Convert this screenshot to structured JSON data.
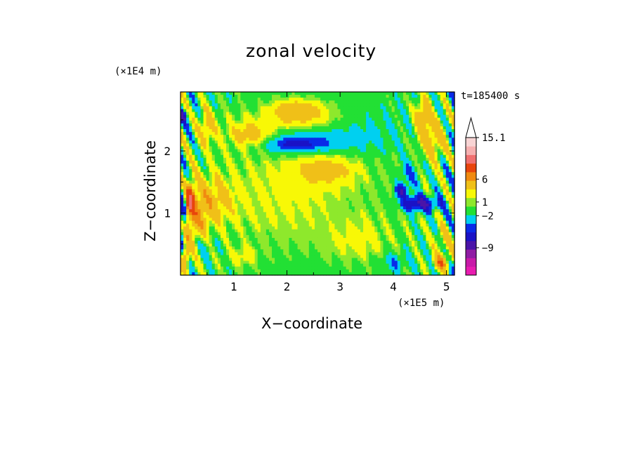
{
  "chart_data": {
    "type": "heatmap",
    "title": "zonal velocity",
    "xlabel": "X−coordinate",
    "ylabel": "Z−coordinate",
    "x_unit": "(×1E5 m)",
    "y_unit": "(×1E4 m)",
    "time_label": "t=185400 s",
    "xlim": [
      0,
      5.15
    ],
    "ylim": [
      0,
      2.95
    ],
    "x_ticks": [
      1,
      2,
      3,
      4,
      5
    ],
    "y_ticks": [
      1,
      2
    ],
    "colorbar": {
      "ticks": [
        15.1,
        6,
        1,
        -2,
        -9
      ],
      "tick_labels": [
        "15.1",
        "6",
        "1",
        "−2",
        "−9"
      ],
      "range": [
        -15,
        15.1
      ],
      "levels": [
        {
          "value": -15,
          "color": "#e81cb0"
        },
        {
          "value": -12,
          "color": "#c81aa8"
        },
        {
          "value": -9,
          "color": "#901ca4"
        },
        {
          "value": -6,
          "color": "#4a14a8"
        },
        {
          "value": -4,
          "color": "#1a12c6"
        },
        {
          "value": -2.5,
          "color": "#0a2ae8"
        },
        {
          "value": -1.5,
          "color": "#00d0f0"
        },
        {
          "value": -0.5,
          "color": "#22e034"
        },
        {
          "value": 0.5,
          "color": "#8ee82c"
        },
        {
          "value": 1,
          "color": "#f8f806"
        },
        {
          "value": 2,
          "color": "#f0c018"
        },
        {
          "value": 4,
          "color": "#f08a10"
        },
        {
          "value": 6,
          "color": "#e8440c"
        },
        {
          "value": 9,
          "color": "#f07070"
        },
        {
          "value": 12,
          "color": "#f6b0b0"
        },
        {
          "value": 15.1,
          "color": "#f8d4d4"
        }
      ]
    },
    "background_value": 0,
    "features": [
      {
        "x": 2.2,
        "z": 0.85,
        "sx": 1.3,
        "sz": 0.65,
        "v": 0.0
      },
      {
        "x": 2.0,
        "z": 1.3,
        "sx": 1.8,
        "sz": 0.9,
        "v": 1.2
      },
      {
        "x": 2.2,
        "z": 2.45,
        "sx": 1.2,
        "sz": 0.22,
        "v": 1.3
      },
      {
        "x": 2.2,
        "z": 2.65,
        "sx": 0.5,
        "sz": 0.18,
        "v": 3.0
      },
      {
        "x": 1.3,
        "z": 2.25,
        "sx": 0.4,
        "sz": 0.18,
        "v": 2.6
      },
      {
        "x": 2.15,
        "z": 2.1,
        "sx": 0.55,
        "sz": 0.12,
        "v": -2.3
      },
      {
        "x": 2.35,
        "z": 2.2,
        "sx": 0.9,
        "sz": 0.25,
        "v": -1.6
      },
      {
        "x": 3.4,
        "z": 2.3,
        "sx": 0.7,
        "sz": 0.35,
        "v": -1.0
      },
      {
        "x": 2.7,
        "z": 1.7,
        "sx": 0.55,
        "sz": 0.22,
        "v": 2.4
      },
      {
        "x": 0.65,
        "z": 1.2,
        "sx": 0.35,
        "sz": 0.35,
        "v": 2.2
      },
      {
        "x": 0.25,
        "z": 0.9,
        "sx": 0.25,
        "sz": 0.55,
        "v": 3.2
      },
      {
        "x": 0.18,
        "z": 1.2,
        "sx": 0.08,
        "sz": 0.22,
        "v": 6.5
      },
      {
        "x": 0.05,
        "z": 1.0,
        "sx": 0.06,
        "sz": 0.4,
        "v": -4.0
      },
      {
        "x": 0.5,
        "z": 2.4,
        "sx": 0.15,
        "sz": 0.3,
        "v": 2.5
      },
      {
        "x": 0.05,
        "z": 2.55,
        "sx": 0.08,
        "sz": 0.1,
        "v": -3.0
      },
      {
        "x": 0.4,
        "z": 0.45,
        "sx": 0.25,
        "sz": 0.2,
        "v": -1.2
      },
      {
        "x": 0.1,
        "z": 0.3,
        "sx": 0.06,
        "sz": 0.2,
        "v": 4.0
      },
      {
        "x": 1.2,
        "z": 0.3,
        "sx": 0.25,
        "sz": 0.15,
        "v": 1.3
      },
      {
        "x": 3.35,
        "z": 0.55,
        "sx": 0.6,
        "sz": 0.35,
        "v": 1.1
      },
      {
        "x": 3.0,
        "z": 0.9,
        "sx": 0.35,
        "sz": 0.45,
        "v": -0.2
      },
      {
        "x": 4.5,
        "z": 1.15,
        "sx": 0.35,
        "sz": 0.12,
        "v": -4.5
      },
      {
        "x": 4.15,
        "z": 1.35,
        "sx": 0.12,
        "sz": 0.1,
        "v": -3.5
      },
      {
        "x": 4.3,
        "z": 1.6,
        "sx": 0.2,
        "sz": 0.25,
        "v": -1.5
      },
      {
        "x": 4.75,
        "z": 2.2,
        "sx": 0.25,
        "sz": 0.35,
        "v": 2.8
      },
      {
        "x": 4.55,
        "z": 2.55,
        "sx": 0.15,
        "sz": 0.3,
        "v": 3.0
      },
      {
        "x": 4.95,
        "z": 0.55,
        "sx": 0.2,
        "sz": 0.25,
        "v": 1.6
      },
      {
        "x": 4.9,
        "z": 0.2,
        "sx": 0.15,
        "sz": 0.12,
        "v": 4.5
      },
      {
        "x": 4.0,
        "z": 0.2,
        "sx": 0.2,
        "sz": 0.15,
        "v": -1.5
      }
    ]
  }
}
